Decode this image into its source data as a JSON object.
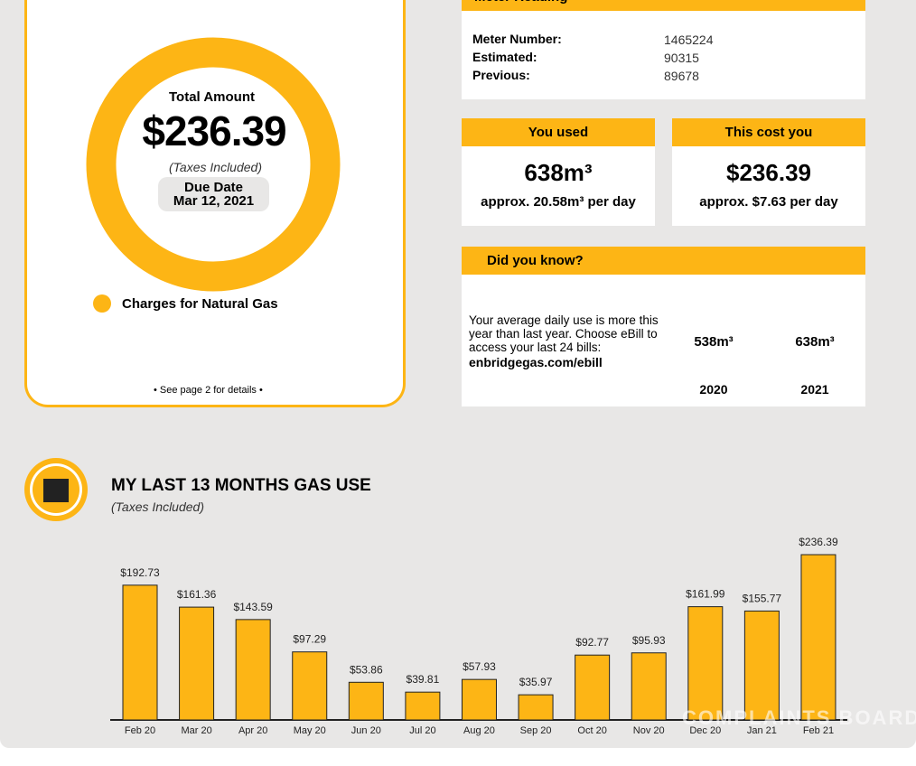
{
  "summary": {
    "total_label": "Total Amount",
    "total": "$236.39",
    "taxes_note": "(Taxes Included)",
    "due_label": "Due Date",
    "due_date": "Mar 12, 2021",
    "legend": "Charges for Natural Gas",
    "details_note": "• See page 2 for details •"
  },
  "meter": {
    "title": "Meter Reading",
    "rows": [
      [
        "Meter Number:",
        "1465224"
      ],
      [
        "Estimated:",
        "90315"
      ],
      [
        "Previous:",
        "89678"
      ]
    ]
  },
  "used": {
    "title": "You used",
    "amount": "638m³",
    "per_day": "approx. 20.58m³ per day"
  },
  "cost": {
    "title": "This cost you",
    "amount": "$236.39",
    "per_day": "approx. $7.63 per day"
  },
  "did_you_know": {
    "title": "Did you know?",
    "text": "Your average daily use is more this year than last year. Choose eBill to access your last 24 bills:",
    "link": "enbridgegas.com/ebill",
    "houses": [
      {
        "value": "538m³",
        "year": "2020"
      },
      {
        "value": "638m³",
        "year": "2021"
      }
    ]
  },
  "watermark": "COMPLAINTS BOARD",
  "chart_data": {
    "type": "bar",
    "title": "MY LAST 13 MONTHS GAS USE",
    "subtitle": "(Taxes Included)",
    "color": "#fdb515",
    "categories": [
      "Feb 20",
      "Mar 20",
      "Apr 20",
      "May 20",
      "Jun 20",
      "Jul 20",
      "Aug 20",
      "Sep 20",
      "Oct 20",
      "Nov 20",
      "Dec 20",
      "Jan 21",
      "Feb 21"
    ],
    "values": [
      192.73,
      161.36,
      143.59,
      97.29,
      53.86,
      39.81,
      57.93,
      35.97,
      92.77,
      95.93,
      161.99,
      155.77,
      236.39
    ],
    "value_labels": [
      "$192.73",
      "$161.36",
      "$143.59",
      "$97.29",
      "$53.86",
      "$39.81",
      "$57.93",
      "$35.97",
      "$92.77",
      "$95.93",
      "$161.99",
      "$155.77",
      "$236.39"
    ]
  }
}
